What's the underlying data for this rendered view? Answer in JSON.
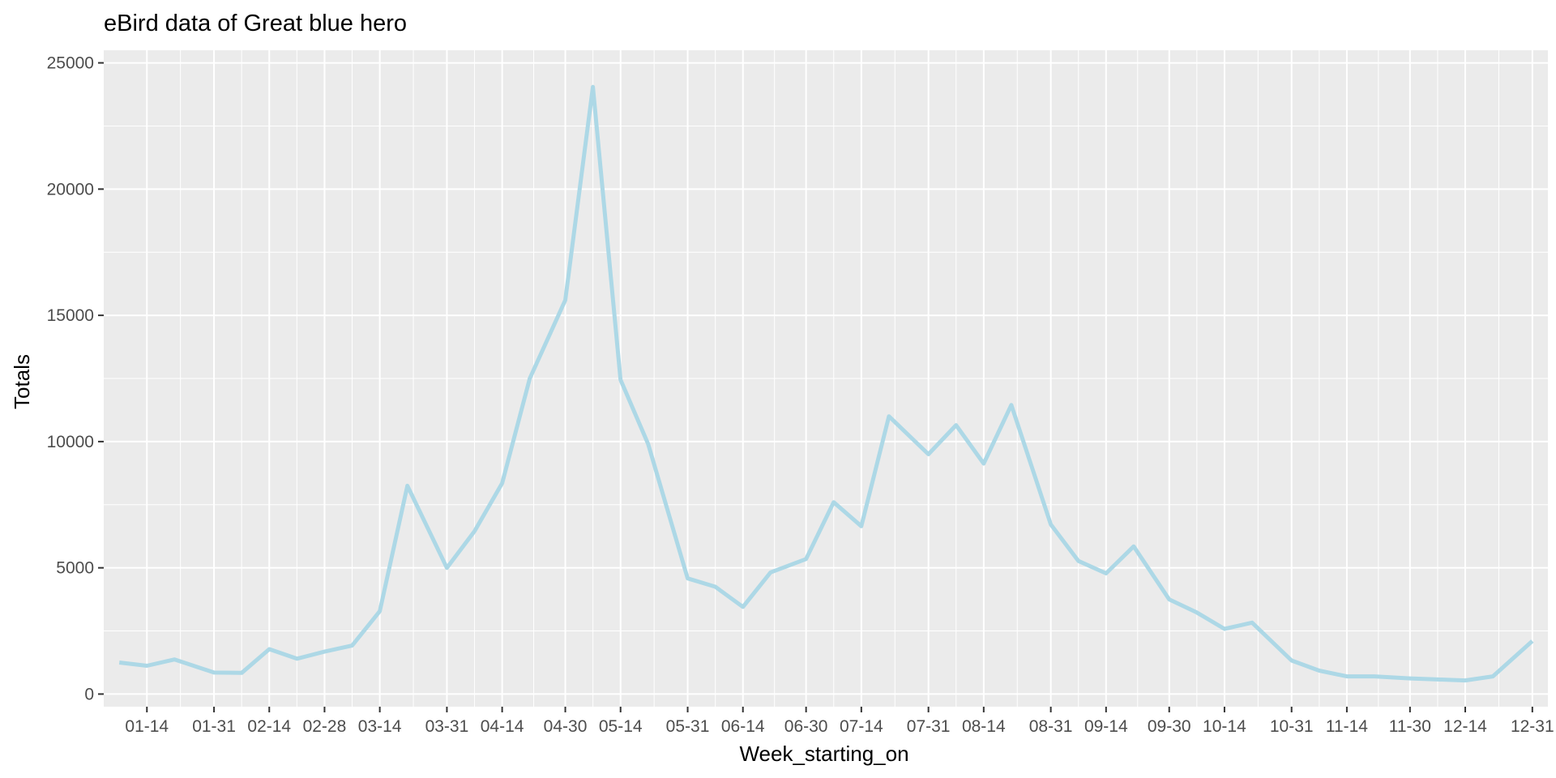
{
  "chart_data": {
    "type": "line",
    "title": "eBird data of Great blue hero",
    "xlabel": "Week_starting_on",
    "ylabel": "Totals",
    "x_tick_labels": [
      "01-14",
      "01-31",
      "02-14",
      "02-28",
      "03-14",
      "03-31",
      "04-14",
      "04-30",
      "05-14",
      "05-31",
      "06-14",
      "06-30",
      "07-14",
      "07-31",
      "08-14",
      "08-31",
      "09-14",
      "09-30",
      "10-14",
      "10-31",
      "11-14",
      "11-30",
      "12-14",
      "12-31"
    ],
    "y_ticks": [
      0,
      5000,
      10000,
      15000,
      20000,
      25000
    ],
    "ylim": [
      -500,
      25500
    ],
    "grid": true,
    "line_color": "#add8e6",
    "series": [
      {
        "x": [
          "01-07",
          "01-14",
          "01-21",
          "01-31",
          "02-07",
          "02-14",
          "02-21",
          "02-28",
          "03-07",
          "03-14",
          "03-21",
          "03-31",
          "04-07",
          "04-14",
          "04-21",
          "04-30",
          "05-07",
          "05-14",
          "05-21",
          "05-31",
          "06-07",
          "06-14",
          "06-21",
          "06-30",
          "07-07",
          "07-14",
          "07-21",
          "07-31",
          "08-07",
          "08-14",
          "08-21",
          "08-31",
          "09-07",
          "09-14",
          "09-21",
          "09-30",
          "10-07",
          "10-14",
          "10-21",
          "10-31",
          "11-07",
          "11-14",
          "11-21",
          "11-30",
          "12-07",
          "12-14",
          "12-21",
          "12-31"
        ],
        "y": [
          1250,
          1120,
          1370,
          850,
          840,
          1780,
          1400,
          1680,
          1920,
          3280,
          8250,
          5000,
          6450,
          8350,
          12500,
          15600,
          24050,
          12450,
          9900,
          4580,
          4250,
          3450,
          4820,
          5350,
          7600,
          6650,
          11000,
          9500,
          10650,
          9130,
          11450,
          6720,
          5270,
          4780,
          5850,
          3750,
          3230,
          2580,
          2830,
          1330,
          930,
          700,
          700,
          620,
          580,
          540,
          700,
          2100
        ]
      }
    ]
  }
}
